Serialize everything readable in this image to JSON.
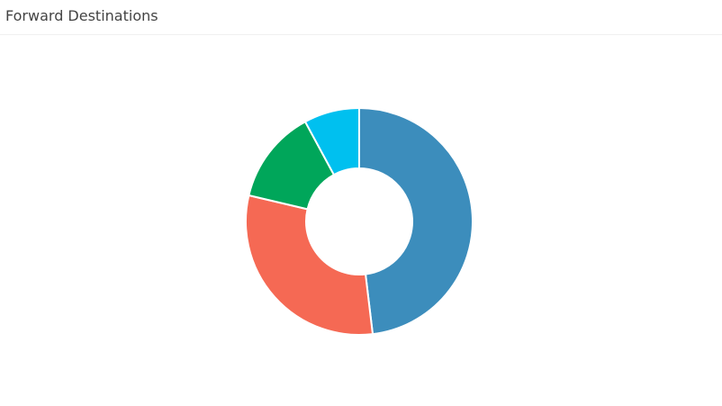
{
  "chart_data": {
    "type": "doughnut",
    "title": "Forward Destinations",
    "values": [
      48.1,
      30.6,
      13.4,
      7.9
    ],
    "colors": [
      "#3c8dbc",
      "#f56954",
      "#00a65a",
      "#00c0ef"
    ]
  }
}
